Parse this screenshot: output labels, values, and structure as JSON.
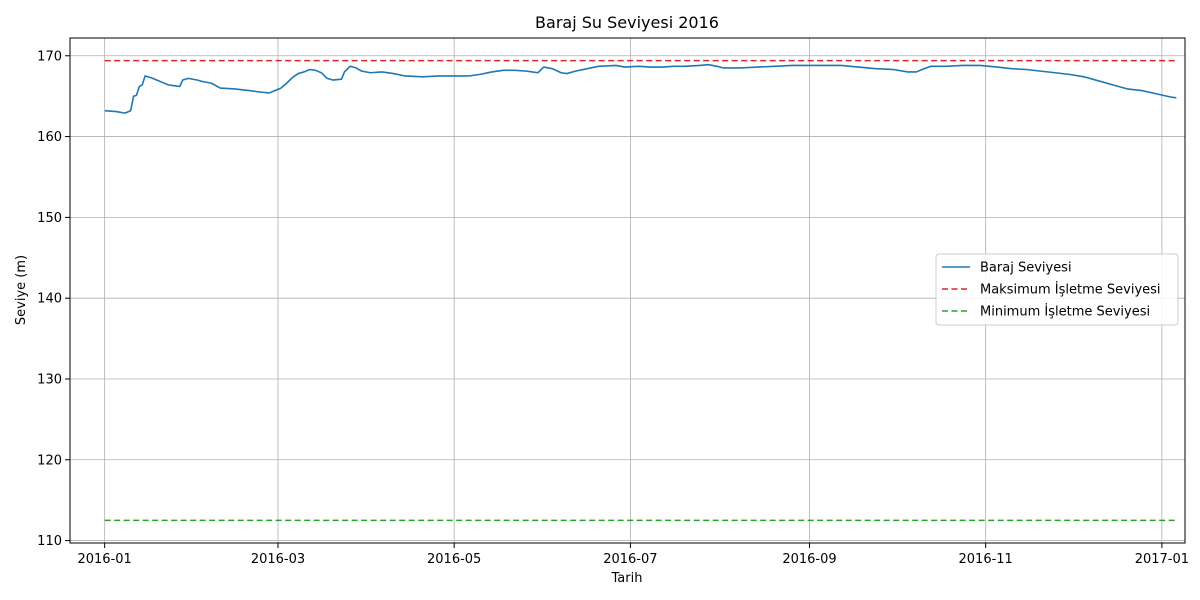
{
  "chart_data": {
    "type": "line",
    "title": "Baraj Su Seviyesi 2016",
    "xlabel": "Tarih",
    "ylabel": "Seviye (m)",
    "xlim": [
      "2015-12-20",
      "2017-01-09"
    ],
    "ylim": [
      109.7,
      172.2
    ],
    "x_ticks": [
      "2016-01",
      "2016-03",
      "2016-05",
      "2016-07",
      "2016-09",
      "2016-11",
      "2017-01"
    ],
    "y_ticks": [
      110,
      120,
      130,
      140,
      150,
      160,
      170
    ],
    "grid": true,
    "legend_position": "center-right",
    "series": [
      {
        "name": "Baraj Seviyesi",
        "color": "#1f77b4",
        "style": "solid",
        "points": [
          [
            "2016-01-01",
            163.2
          ],
          [
            "2016-01-05",
            163.1
          ],
          [
            "2016-01-08",
            162.9
          ],
          [
            "2016-01-10",
            163.2
          ],
          [
            "2016-01-11",
            165.0
          ],
          [
            "2016-01-12",
            165.1
          ],
          [
            "2016-01-13",
            166.2
          ],
          [
            "2016-01-14",
            166.4
          ],
          [
            "2016-01-15",
            167.5
          ],
          [
            "2016-01-17",
            167.3
          ],
          [
            "2016-01-19",
            167.0
          ],
          [
            "2016-01-21",
            166.7
          ],
          [
            "2016-01-23",
            166.4
          ],
          [
            "2016-01-25",
            166.3
          ],
          [
            "2016-01-27",
            166.2
          ],
          [
            "2016-01-28",
            167.0
          ],
          [
            "2016-01-30",
            167.2
          ],
          [
            "2016-02-02",
            167.0
          ],
          [
            "2016-02-04",
            166.8
          ],
          [
            "2016-02-07",
            166.6
          ],
          [
            "2016-02-10",
            166.0
          ],
          [
            "2016-02-15",
            165.9
          ],
          [
            "2016-02-20",
            165.7
          ],
          [
            "2016-02-24",
            165.5
          ],
          [
            "2016-02-27",
            165.4
          ],
          [
            "2016-02-29",
            165.7
          ],
          [
            "2016-03-02",
            166.0
          ],
          [
            "2016-03-04",
            166.6
          ],
          [
            "2016-03-06",
            167.3
          ],
          [
            "2016-03-08",
            167.8
          ],
          [
            "2016-03-10",
            168.0
          ],
          [
            "2016-03-12",
            168.3
          ],
          [
            "2016-03-14",
            168.2
          ],
          [
            "2016-03-16",
            167.9
          ],
          [
            "2016-03-18",
            167.2
          ],
          [
            "2016-03-20",
            167.0
          ],
          [
            "2016-03-23",
            167.1
          ],
          [
            "2016-03-24",
            168.0
          ],
          [
            "2016-03-26",
            168.7
          ],
          [
            "2016-03-28",
            168.5
          ],
          [
            "2016-03-30",
            168.1
          ],
          [
            "2016-04-02",
            167.9
          ],
          [
            "2016-04-06",
            168.0
          ],
          [
            "2016-04-10",
            167.8
          ],
          [
            "2016-04-14",
            167.5
          ],
          [
            "2016-04-20",
            167.4
          ],
          [
            "2016-04-26",
            167.5
          ],
          [
            "2016-05-02",
            167.5
          ],
          [
            "2016-05-06",
            167.5
          ],
          [
            "2016-05-10",
            167.7
          ],
          [
            "2016-05-14",
            168.0
          ],
          [
            "2016-05-18",
            168.2
          ],
          [
            "2016-05-22",
            168.2
          ],
          [
            "2016-05-26",
            168.1
          ],
          [
            "2016-05-28",
            168.0
          ],
          [
            "2016-05-30",
            167.9
          ],
          [
            "2016-06-01",
            168.6
          ],
          [
            "2016-06-04",
            168.4
          ],
          [
            "2016-06-07",
            167.9
          ],
          [
            "2016-06-09",
            167.8
          ],
          [
            "2016-06-12",
            168.1
          ],
          [
            "2016-06-16",
            168.4
          ],
          [
            "2016-06-20",
            168.7
          ],
          [
            "2016-06-26",
            168.8
          ],
          [
            "2016-06-29",
            168.6
          ],
          [
            "2016-07-04",
            168.7
          ],
          [
            "2016-07-08",
            168.6
          ],
          [
            "2016-07-12",
            168.6
          ],
          [
            "2016-07-16",
            168.7
          ],
          [
            "2016-07-20",
            168.7
          ],
          [
            "2016-07-25",
            168.8
          ],
          [
            "2016-07-28",
            168.9
          ],
          [
            "2016-07-31",
            168.7
          ],
          [
            "2016-08-02",
            168.5
          ],
          [
            "2016-08-08",
            168.5
          ],
          [
            "2016-08-14",
            168.6
          ],
          [
            "2016-08-20",
            168.7
          ],
          [
            "2016-08-26",
            168.8
          ],
          [
            "2016-09-01",
            168.8
          ],
          [
            "2016-09-06",
            168.8
          ],
          [
            "2016-09-12",
            168.8
          ],
          [
            "2016-09-18",
            168.6
          ],
          [
            "2016-09-24",
            168.4
          ],
          [
            "2016-09-30",
            168.3
          ],
          [
            "2016-10-05",
            168.0
          ],
          [
            "2016-10-08",
            168.0
          ],
          [
            "2016-10-10",
            168.3
          ],
          [
            "2016-10-13",
            168.7
          ],
          [
            "2016-10-18",
            168.7
          ],
          [
            "2016-10-24",
            168.8
          ],
          [
            "2016-10-30",
            168.8
          ],
          [
            "2016-11-05",
            168.6
          ],
          [
            "2016-11-10",
            168.4
          ],
          [
            "2016-11-15",
            168.3
          ],
          [
            "2016-11-20",
            168.1
          ],
          [
            "2016-11-25",
            167.9
          ],
          [
            "2016-11-30",
            167.7
          ],
          [
            "2016-12-05",
            167.4
          ],
          [
            "2016-12-10",
            166.9
          ],
          [
            "2016-12-15",
            166.4
          ],
          [
            "2016-12-20",
            165.9
          ],
          [
            "2016-12-25",
            165.7
          ],
          [
            "2016-12-30",
            165.3
          ],
          [
            "2017-01-04",
            164.9
          ],
          [
            "2017-01-06",
            164.8
          ]
        ]
      },
      {
        "name": "Maksimum İşletme Seviyesi",
        "color": "#d62728",
        "style": "dashed",
        "points": [
          [
            "2016-01-01",
            169.4
          ],
          [
            "2017-01-06",
            169.4
          ]
        ]
      },
      {
        "name": "Minimum İşletme Seviyesi",
        "color": "#2ca02c",
        "style": "dashed",
        "points": [
          [
            "2016-01-01",
            112.5
          ],
          [
            "2017-01-06",
            112.5
          ]
        ]
      }
    ]
  }
}
